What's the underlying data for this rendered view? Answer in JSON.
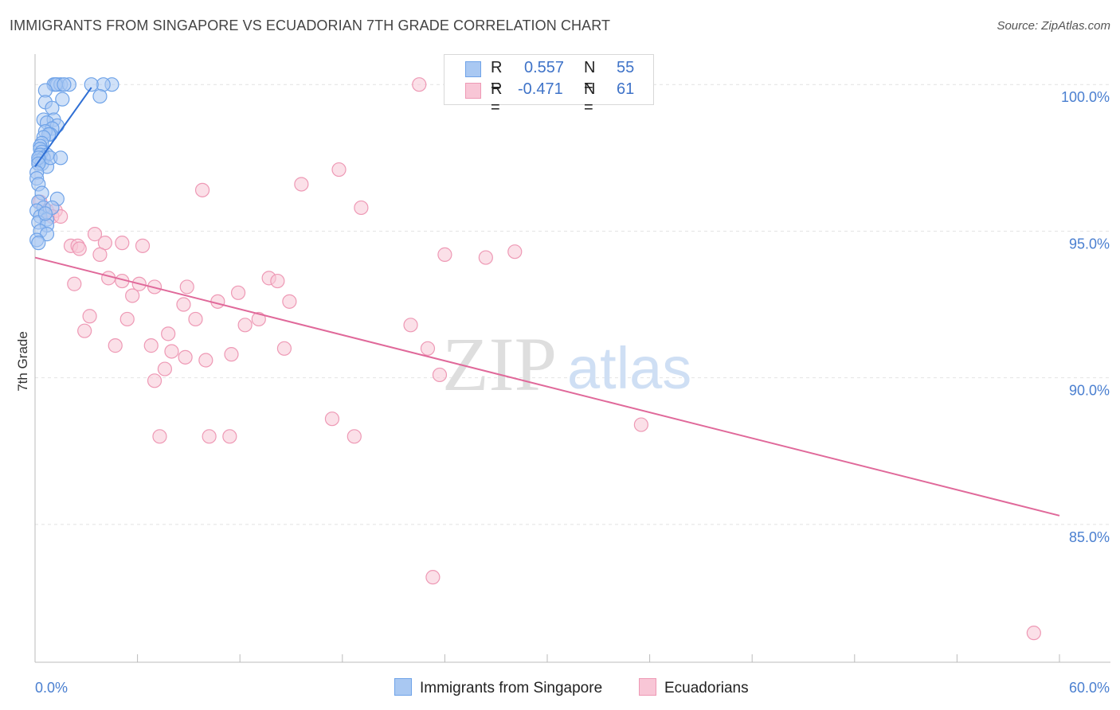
{
  "title": "IMMIGRANTS FROM SINGAPORE VS ECUADORIAN 7TH GRADE CORRELATION CHART",
  "source": "Source: ZipAtlas.com",
  "watermark": {
    "zip": "ZIP",
    "atlas": "atlas"
  },
  "legend": {
    "rows": [
      {
        "r_label": "R =",
        "r_value": "0.557",
        "n_label": "N =",
        "n_value": "55"
      },
      {
        "r_label": "R =",
        "r_value": "-0.471",
        "n_label": "N =",
        "n_value": "61"
      }
    ]
  },
  "bottom_legend": [
    "Immigrants from Singapore",
    "Ecuadorians"
  ],
  "colors": {
    "blue": "#6fa3e8",
    "blue_fill": "#a9c8f2",
    "blue_line": "#2f6fd4",
    "pink": "#ee99b5",
    "pink_fill": "#f8c6d6",
    "pink_line": "#e0699a",
    "tick": "#4a7fd0"
  },
  "chart_data": {
    "type": "scatter",
    "title": "IMMIGRANTS FROM SINGAPORE VS ECUADORIAN 7TH GRADE CORRELATION CHART",
    "xlabel": "",
    "ylabel": "7th Grade",
    "xlim": [
      0,
      60
    ],
    "ylim": [
      80.3,
      101.2
    ],
    "x_tick_labels": [
      "0.0%",
      "60.0%"
    ],
    "y_ticks": [
      100,
      95,
      90,
      85
    ],
    "y_tick_labels": [
      "100.0%",
      "95.0%",
      "90.0%",
      "85.0%"
    ],
    "series": [
      {
        "name": "Immigrants from Singapore",
        "r": 0.557,
        "n": 55,
        "trend": {
          "x": [
            0,
            3.3
          ],
          "y": [
            97.2,
            99.9
          ]
        },
        "points": [
          [
            1.1,
            100.0
          ],
          [
            1.3,
            100.0
          ],
          [
            1.5,
            100.0
          ],
          [
            2.0,
            100.0
          ],
          [
            1.2,
            100.0
          ],
          [
            4.5,
            100.0
          ],
          [
            4.0,
            100.0
          ],
          [
            3.3,
            100.0
          ],
          [
            3.8,
            99.6
          ],
          [
            1.7,
            100.0
          ],
          [
            0.6,
            99.8
          ],
          [
            1.6,
            99.5
          ],
          [
            0.6,
            99.4
          ],
          [
            1.0,
            99.2
          ],
          [
            0.5,
            98.8
          ],
          [
            1.1,
            98.8
          ],
          [
            0.7,
            98.7
          ],
          [
            1.3,
            98.6
          ],
          [
            1.0,
            98.5
          ],
          [
            0.9,
            98.3
          ],
          [
            0.6,
            98.4
          ],
          [
            0.8,
            98.3
          ],
          [
            0.5,
            98.2
          ],
          [
            0.4,
            98.0
          ],
          [
            0.3,
            97.9
          ],
          [
            0.3,
            97.8
          ],
          [
            0.4,
            97.7
          ],
          [
            0.7,
            97.6
          ],
          [
            0.3,
            97.6
          ],
          [
            0.5,
            97.5
          ],
          [
            0.2,
            97.4
          ],
          [
            0.4,
            97.3
          ],
          [
            0.7,
            97.2
          ],
          [
            0.9,
            97.5
          ],
          [
            1.5,
            97.5
          ],
          [
            0.2,
            97.5
          ],
          [
            0.2,
            97.3
          ],
          [
            0.1,
            97.0
          ],
          [
            0.1,
            96.8
          ],
          [
            0.2,
            96.6
          ],
          [
            0.4,
            96.3
          ],
          [
            1.3,
            96.1
          ],
          [
            0.2,
            96.0
          ],
          [
            0.5,
            95.8
          ],
          [
            0.1,
            95.7
          ],
          [
            0.3,
            95.5
          ],
          [
            0.7,
            95.4
          ],
          [
            0.2,
            95.3
          ],
          [
            0.7,
            95.2
          ],
          [
            0.3,
            95.0
          ],
          [
            0.7,
            94.9
          ],
          [
            0.1,
            94.7
          ],
          [
            0.2,
            94.6
          ],
          [
            1.0,
            95.8
          ],
          [
            0.6,
            95.6
          ]
        ]
      },
      {
        "name": "Ecuadorians",
        "r": -0.471,
        "n": 61,
        "trend": {
          "x": [
            0,
            60
          ],
          "y": [
            94.1,
            85.3
          ]
        },
        "points": [
          [
            22.5,
            100.0
          ],
          [
            0.3,
            96.0
          ],
          [
            0.7,
            95.7
          ],
          [
            1.2,
            95.7
          ],
          [
            1.0,
            95.5
          ],
          [
            1.5,
            95.5
          ],
          [
            3.5,
            94.9
          ],
          [
            4.1,
            94.6
          ],
          [
            5.1,
            94.6
          ],
          [
            6.3,
            94.5
          ],
          [
            2.1,
            94.5
          ],
          [
            2.5,
            94.5
          ],
          [
            2.6,
            94.4
          ],
          [
            3.8,
            94.2
          ],
          [
            24.0,
            94.2
          ],
          [
            26.4,
            94.1
          ],
          [
            28.1,
            94.3
          ],
          [
            9.8,
            96.4
          ],
          [
            15.6,
            96.6
          ],
          [
            17.8,
            97.1
          ],
          [
            19.1,
            95.8
          ],
          [
            4.3,
            93.4
          ],
          [
            5.1,
            93.3
          ],
          [
            6.1,
            93.2
          ],
          [
            7.0,
            93.1
          ],
          [
            8.9,
            93.1
          ],
          [
            13.7,
            93.4
          ],
          [
            14.2,
            93.3
          ],
          [
            2.3,
            93.2
          ],
          [
            5.7,
            92.8
          ],
          [
            11.9,
            92.9
          ],
          [
            8.7,
            92.5
          ],
          [
            10.7,
            92.6
          ],
          [
            14.9,
            92.6
          ],
          [
            3.2,
            92.1
          ],
          [
            5.4,
            92.0
          ],
          [
            9.4,
            92.0
          ],
          [
            13.1,
            92.0
          ],
          [
            12.3,
            91.8
          ],
          [
            22.0,
            91.8
          ],
          [
            2.9,
            91.6
          ],
          [
            7.8,
            91.5
          ],
          [
            4.7,
            91.1
          ],
          [
            6.8,
            91.1
          ],
          [
            14.6,
            91.0
          ],
          [
            8.0,
            90.9
          ],
          [
            11.5,
            90.8
          ],
          [
            8.8,
            90.7
          ],
          [
            10.0,
            90.6
          ],
          [
            7.6,
            90.3
          ],
          [
            23.7,
            90.1
          ],
          [
            7.0,
            89.9
          ],
          [
            17.4,
            88.6
          ],
          [
            35.5,
            88.4
          ],
          [
            7.3,
            88.0
          ],
          [
            10.2,
            88.0
          ],
          [
            11.4,
            88.0
          ],
          [
            18.7,
            88.0
          ],
          [
            23.3,
            83.2
          ],
          [
            58.5,
            81.3
          ],
          [
            23.0,
            91.0
          ]
        ]
      }
    ]
  }
}
